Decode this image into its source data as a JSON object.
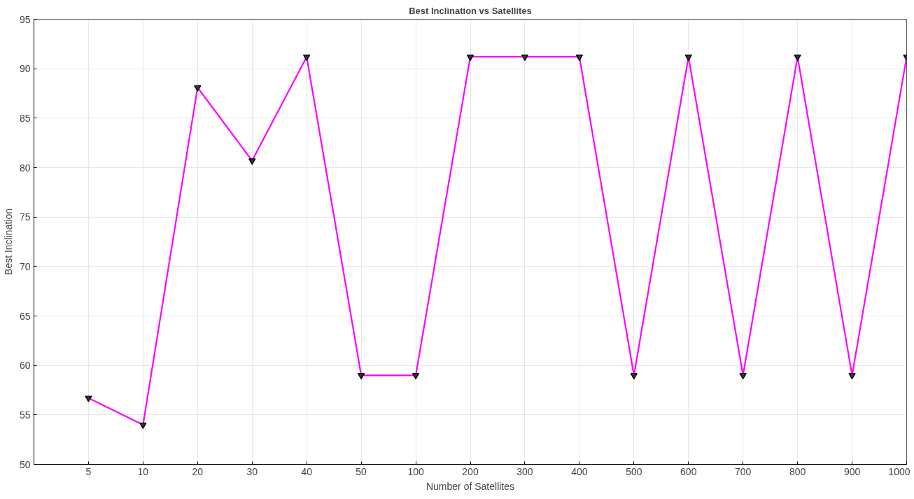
{
  "chart_data": {
    "type": "line",
    "title": "Best Inclination vs Satellites",
    "xlabel": "Number of Satellites",
    "ylabel": "Best Inclination",
    "categories": [
      "5",
      "10",
      "20",
      "30",
      "40",
      "50",
      "100",
      "200",
      "300",
      "400",
      "500",
      "600",
      "700",
      "800",
      "900",
      "1000"
    ],
    "series": [
      {
        "color": "#ff00ff",
        "values": [
          56.7,
          54,
          88.1,
          80.7,
          91.2,
          59,
          59,
          91.2,
          91.2,
          91.2,
          59,
          91.2,
          59,
          91.2,
          59,
          91.2
        ]
      }
    ],
    "ylim": [
      50,
      95
    ],
    "yticks": [
      50,
      55,
      60,
      65,
      70,
      75,
      80,
      85,
      90,
      95
    ],
    "grid": true,
    "marker": "triangle",
    "line_style": "solid"
  }
}
